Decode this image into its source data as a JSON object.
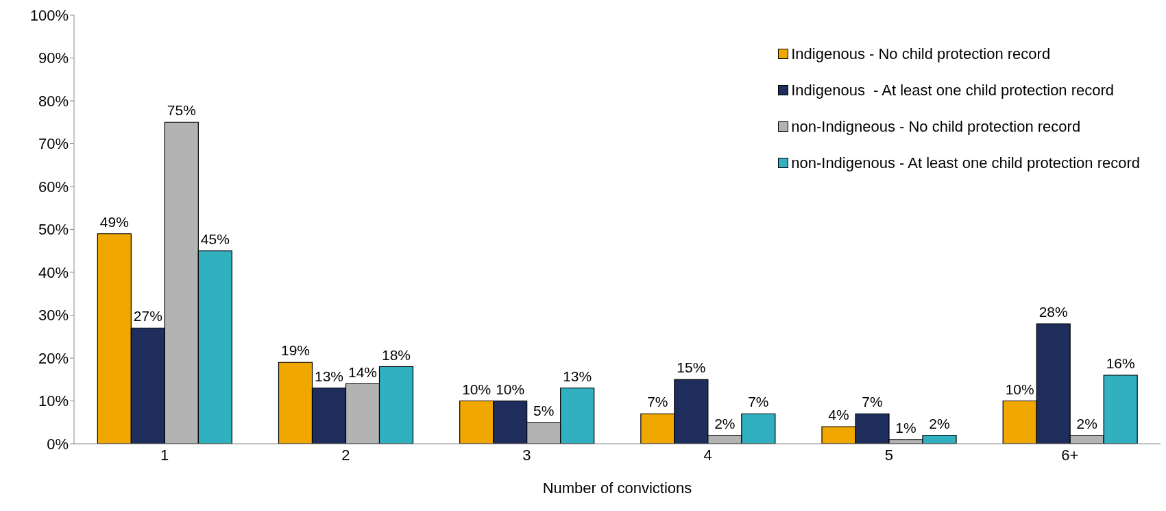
{
  "chart_data": {
    "type": "bar",
    "xlabel": "Number of convictions",
    "categories": [
      "1",
      "2",
      "3",
      "4",
      "5",
      "6+"
    ],
    "series": [
      {
        "name": "Indigenous - No child protection record",
        "color": "#f0a800",
        "values": [
          49,
          19,
          10,
          7,
          4,
          10
        ],
        "value_labels": [
          "49%",
          "19%",
          "10%",
          "7%",
          "4%",
          "10%"
        ]
      },
      {
        "name": "Indigenous  - At least one child protection record",
        "color": "#1f2d5c",
        "values": [
          27,
          13,
          10,
          15,
          7,
          28
        ],
        "value_labels": [
          "27%",
          "13%",
          "10%",
          "15%",
          "7%",
          "28%"
        ]
      },
      {
        "name": "non-Indigneous - No child protection record",
        "color": "#b3b3b3",
        "values": [
          75,
          14,
          5,
          2,
          1,
          2
        ],
        "value_labels": [
          "75%",
          "14%",
          "5%",
          "2%",
          "1%",
          "2%"
        ]
      },
      {
        "name": "non-Indigenous - At least one child protection record",
        "color": "#31b0bf",
        "values": [
          45,
          18,
          13,
          7,
          2,
          16
        ],
        "value_labels": [
          "45%",
          "18%",
          "13%",
          "7%",
          "2%",
          "16%"
        ]
      }
    ],
    "ylim": [
      0,
      100
    ],
    "yticks": [
      {
        "value": 0,
        "label": "0%"
      },
      {
        "value": 10,
        "label": "10%"
      },
      {
        "value": 20,
        "label": "20%"
      },
      {
        "value": 30,
        "label": "30%"
      },
      {
        "value": 40,
        "label": "40%"
      },
      {
        "value": 50,
        "label": "50%"
      },
      {
        "value": 60,
        "label": "60%"
      },
      {
        "value": 70,
        "label": "70%"
      },
      {
        "value": 80,
        "label": "80%"
      },
      {
        "value": 90,
        "label": "90%"
      },
      {
        "value": 100,
        "label": "100%"
      }
    ],
    "grid": false,
    "legend": "top right"
  }
}
